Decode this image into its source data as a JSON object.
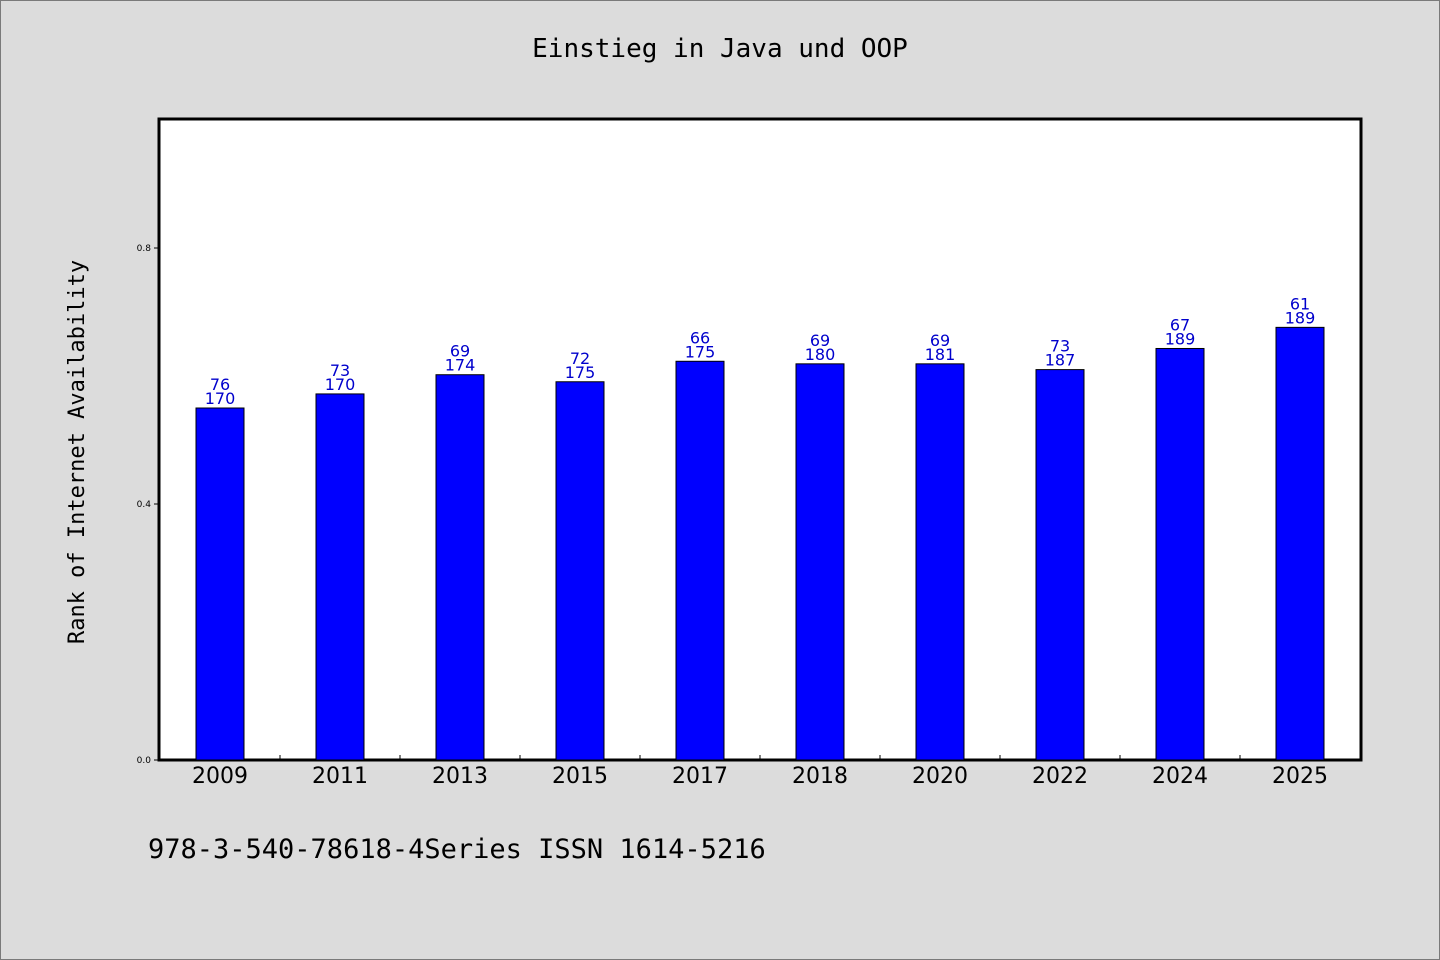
{
  "chart_data": {
    "type": "bar",
    "title": "Einstieg in Java und OOP",
    "ylabel": "Rank of Internet Availability",
    "xlabel": "",
    "categories": [
      "2009",
      "2011",
      "2013",
      "2015",
      "2017",
      "2018",
      "2020",
      "2022",
      "2024",
      "2025"
    ],
    "values": [
      0.55,
      0.572,
      0.602,
      0.591,
      0.623,
      0.619,
      0.619,
      0.61,
      0.643,
      0.676
    ],
    "label_top": [
      "76",
      "73",
      "69",
      "72",
      "66",
      "69",
      "69",
      "73",
      "67",
      "61"
    ],
    "label_bottom": [
      "170",
      "170",
      "174",
      "175",
      "175",
      "180",
      "181",
      "187",
      "189",
      "189"
    ],
    "ylim": [
      0,
      1
    ],
    "yticks": [
      0.0,
      0.4,
      0.8
    ],
    "ytick_labels": [
      "0.0",
      "0.4",
      "0.8"
    ],
    "grid": false,
    "bar_color": "#0000ff",
    "label_color": "#0000cc"
  },
  "footer": "978-3-540-78618-4Series ISSN 1614-5216"
}
